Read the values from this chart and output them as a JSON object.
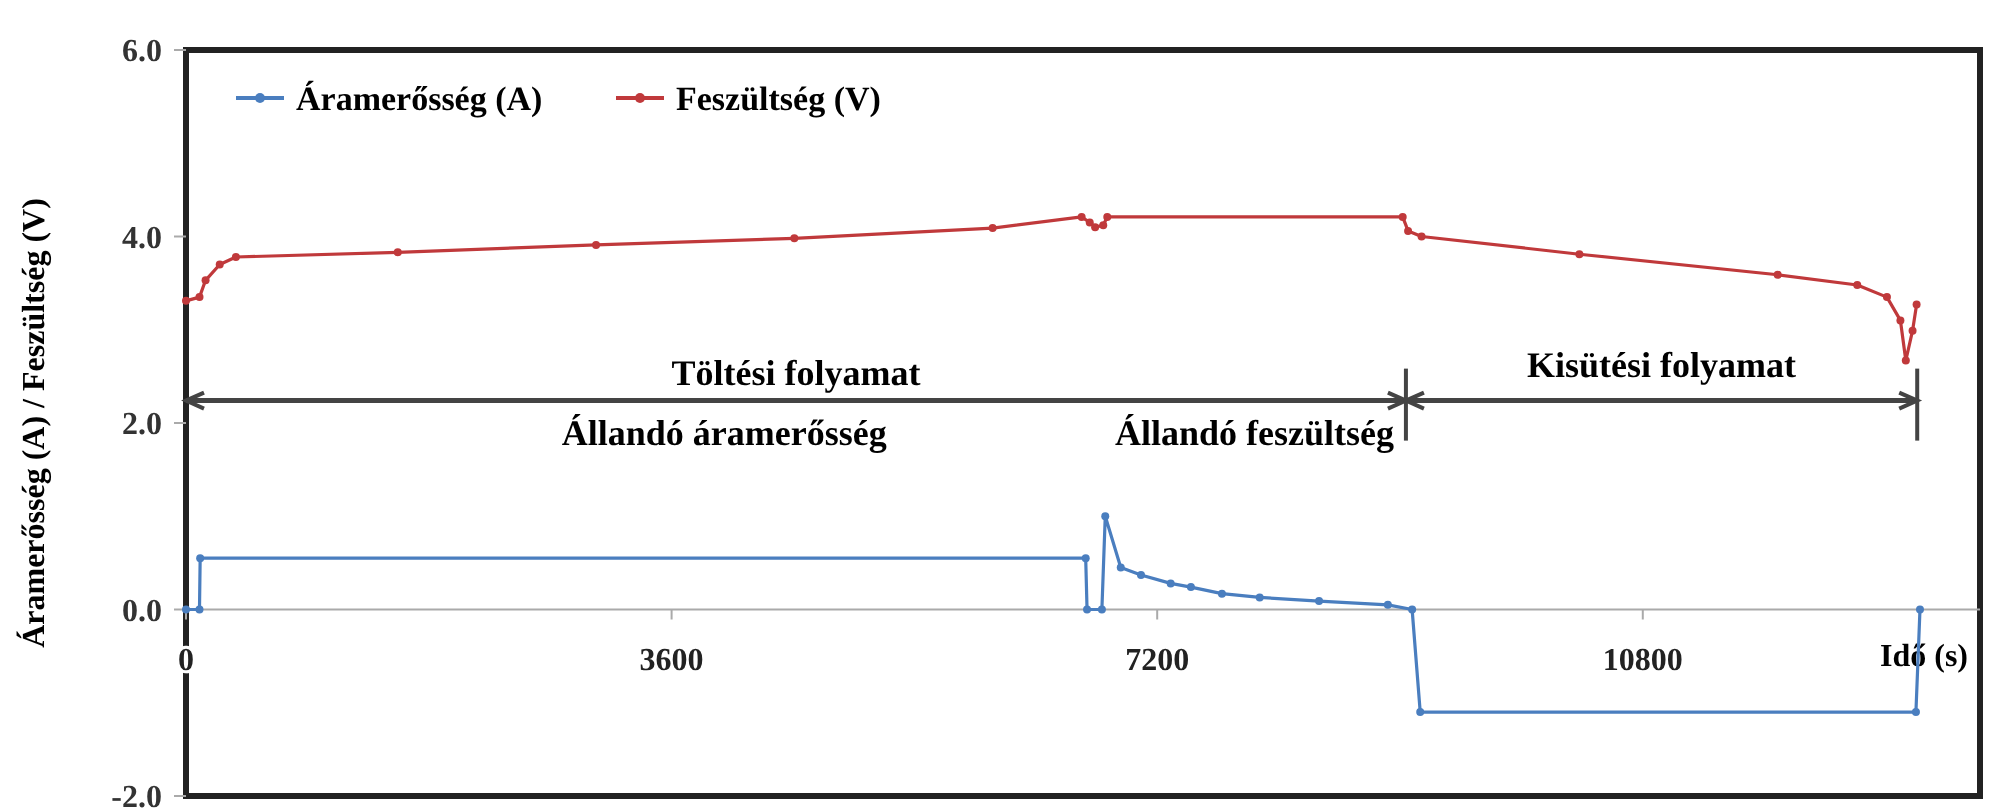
{
  "chart_data": {
    "type": "line",
    "xlabel": "Idő (s)",
    "ylabel": "Áramerősség (A) / Feszültség (V)",
    "xlim": [
      0,
      13300
    ],
    "ylim": [
      -2,
      6
    ],
    "xticks": [
      0,
      3600,
      7200,
      10800
    ],
    "yticks": [
      {
        "value": -2,
        "label": "-2.0"
      },
      {
        "value": 0,
        "label": "0.0"
      },
      {
        "value": 2,
        "label": "2.0"
      },
      {
        "value": 4,
        "label": "4.0"
      },
      {
        "value": 6,
        "label": "6.0"
      }
    ],
    "legend": "top left",
    "marker": "circle",
    "line_style": "solid",
    "grid": false,
    "series": [
      {
        "name": "Áramerősség (A)",
        "color": "#4a7ebf",
        "x": [
          0,
          100,
          105,
          6670,
          6680,
          6790,
          6815,
          6930,
          7080,
          7300,
          7450,
          7680,
          7960,
          8400,
          8910,
          9090,
          9150,
          12825,
          12855
        ],
        "values": [
          0,
          0,
          0.55,
          0.55,
          0,
          0,
          1.0,
          0.45,
          0.37,
          0.28,
          0.24,
          0.17,
          0.13,
          0.09,
          0.05,
          0,
          -1.1,
          -1.1,
          0
        ]
      },
      {
        "name": "Feszültség (V)",
        "color": "#c0393b",
        "x": [
          0,
          100,
          145,
          250,
          370,
          1570,
          3040,
          4510,
          5980,
          6640,
          6700,
          6740,
          6800,
          6830,
          9020,
          9060,
          9160,
          10330,
          11800,
          12390,
          12610,
          12710,
          12750,
          12800,
          12830
        ],
        "values": [
          3.31,
          3.35,
          3.53,
          3.7,
          3.78,
          3.83,
          3.91,
          3.98,
          4.09,
          4.21,
          4.15,
          4.1,
          4.12,
          4.21,
          4.21,
          4.06,
          4.0,
          3.81,
          3.59,
          3.48,
          3.35,
          3.1,
          2.67,
          2.99,
          3.27
        ]
      }
    ],
    "annotations": [
      "Töltési folyamat",
      "Állandó áramerősség",
      "Állandó feszültség",
      "Kisütési folyamat"
    ]
  }
}
